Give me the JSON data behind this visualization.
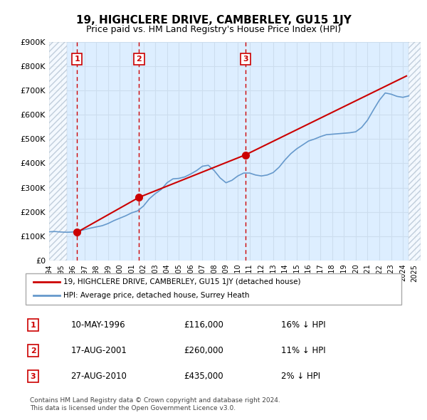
{
  "title": "19, HIGHCLERE DRIVE, CAMBERLEY, GU15 1JY",
  "subtitle": "Price paid vs. HM Land Registry's House Price Index (HPI)",
  "legend_line1": "19, HIGHCLERE DRIVE, CAMBERLEY, GU15 1JY (detached house)",
  "legend_line2": "HPI: Average price, detached house, Surrey Heath",
  "footnote1": "Contains HM Land Registry data © Crown copyright and database right 2024.",
  "footnote2": "This data is licensed under the Open Government Licence v3.0.",
  "sales": [
    {
      "num": 1,
      "date": "10-MAY-1996",
      "price": 116000,
      "year": 1996.37,
      "pct": "16%",
      "dir": "↓"
    },
    {
      "num": 2,
      "date": "17-AUG-2001",
      "price": 260000,
      "year": 2001.63,
      "pct": "11%",
      "dir": "↓"
    },
    {
      "num": 3,
      "date": "27-AUG-2010",
      "price": 435000,
      "year": 2010.65,
      "pct": "2%",
      "dir": "↓"
    }
  ],
  "xmin": 1994,
  "xmax": 2025.5,
  "ymin": 0,
  "ymax": 900000,
  "data_xmin": 1995.5,
  "data_xmax": 2024.5,
  "hpi_color": "#6699cc",
  "price_color": "#cc0000",
  "dashed_color": "#cc0000",
  "bg_color": "#ddeeff",
  "hatch_color": "#aabbcc",
  "grid_color": "#ccddee",
  "hpi_data": [
    [
      1994.0,
      118000
    ],
    [
      1994.5,
      119000
    ],
    [
      1995.0,
      117000
    ],
    [
      1995.5,
      116000
    ],
    [
      1996.0,
      117000
    ],
    [
      1996.5,
      120000
    ],
    [
      1997.0,
      127000
    ],
    [
      1997.5,
      133000
    ],
    [
      1998.0,
      138000
    ],
    [
      1998.5,
      143000
    ],
    [
      1999.0,
      152000
    ],
    [
      1999.5,
      164000
    ],
    [
      2000.0,
      174000
    ],
    [
      2000.5,
      184000
    ],
    [
      2001.0,
      196000
    ],
    [
      2001.5,
      204000
    ],
    [
      2002.0,
      224000
    ],
    [
      2002.5,
      254000
    ],
    [
      2003.0,
      275000
    ],
    [
      2003.5,
      292000
    ],
    [
      2004.0,
      320000
    ],
    [
      2004.5,
      336000
    ],
    [
      2005.0,
      338000
    ],
    [
      2005.5,
      344000
    ],
    [
      2006.0,
      356000
    ],
    [
      2006.5,
      370000
    ],
    [
      2007.0,
      388000
    ],
    [
      2007.5,
      392000
    ],
    [
      2008.0,
      370000
    ],
    [
      2008.5,
      340000
    ],
    [
      2009.0,
      320000
    ],
    [
      2009.5,
      330000
    ],
    [
      2010.0,
      348000
    ],
    [
      2010.5,
      360000
    ],
    [
      2011.0,
      360000
    ],
    [
      2011.5,
      352000
    ],
    [
      2012.0,
      348000
    ],
    [
      2012.5,
      352000
    ],
    [
      2013.0,
      362000
    ],
    [
      2013.5,
      384000
    ],
    [
      2014.0,
      414000
    ],
    [
      2014.5,
      440000
    ],
    [
      2015.0,
      460000
    ],
    [
      2015.5,
      476000
    ],
    [
      2016.0,
      492000
    ],
    [
      2016.5,
      500000
    ],
    [
      2017.0,
      510000
    ],
    [
      2017.5,
      518000
    ],
    [
      2018.0,
      520000
    ],
    [
      2018.5,
      522000
    ],
    [
      2019.0,
      524000
    ],
    [
      2019.5,
      526000
    ],
    [
      2020.0,
      530000
    ],
    [
      2020.5,
      548000
    ],
    [
      2021.0,
      578000
    ],
    [
      2021.5,
      620000
    ],
    [
      2022.0,
      660000
    ],
    [
      2022.5,
      690000
    ],
    [
      2023.0,
      685000
    ],
    [
      2023.5,
      676000
    ],
    [
      2024.0,
      672000
    ],
    [
      2024.5,
      678000
    ]
  ],
  "price_data": [
    [
      1996.37,
      116000
    ],
    [
      2001.63,
      260000
    ],
    [
      2010.65,
      435000
    ],
    [
      2024.3,
      760000
    ]
  ]
}
